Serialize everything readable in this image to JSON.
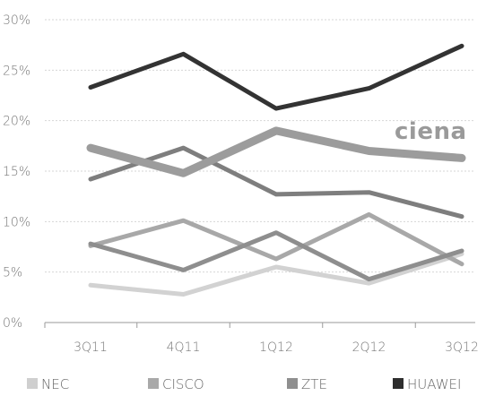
{
  "chart_data": {
    "type": "line",
    "categories": [
      "3Q11",
      "4Q11",
      "1Q12",
      "2Q12",
      "3Q12"
    ],
    "yticks": [
      "0%",
      "5%",
      "10%",
      "15%",
      "20%",
      "25%",
      "30%"
    ],
    "ylim": [
      0,
      30
    ],
    "grid": true,
    "legend_position": "bottom",
    "annotation": "ciena",
    "series": [
      {
        "name": "NEC",
        "color": "#d2d2d2",
        "values": [
          3.7,
          2.8,
          5.5,
          3.9,
          6.8
        ]
      },
      {
        "name": "CISCO",
        "color": "#a8a8a8",
        "values": [
          7.6,
          10.1,
          6.3,
          10.7,
          5.8
        ]
      },
      {
        "name": "ZTE",
        "color": "#8e8e8e",
        "values": [
          7.8,
          5.2,
          8.9,
          4.3,
          7.1
        ]
      },
      {
        "name": "",
        "color": "#7e7e7e",
        "values": [
          14.2,
          17.3,
          12.7,
          12.9,
          10.5
        ]
      },
      {
        "name": "",
        "color": "#9c9c9c",
        "values": [
          17.3,
          14.8,
          19.0,
          17.0,
          16.3
        ]
      },
      {
        "name": "HUAWEI",
        "color": "#333333",
        "values": [
          23.3,
          26.6,
          21.2,
          23.2,
          27.4
        ]
      }
    ],
    "legend": [
      {
        "label": "NEC",
        "color": "#cfcfcf"
      },
      {
        "label": "CISCO",
        "color": "#a9a9a9"
      },
      {
        "label": "ZTE",
        "color": "#8f8f8f"
      },
      {
        "label": "HUAWEI",
        "color": "#2e2e2e"
      }
    ]
  }
}
